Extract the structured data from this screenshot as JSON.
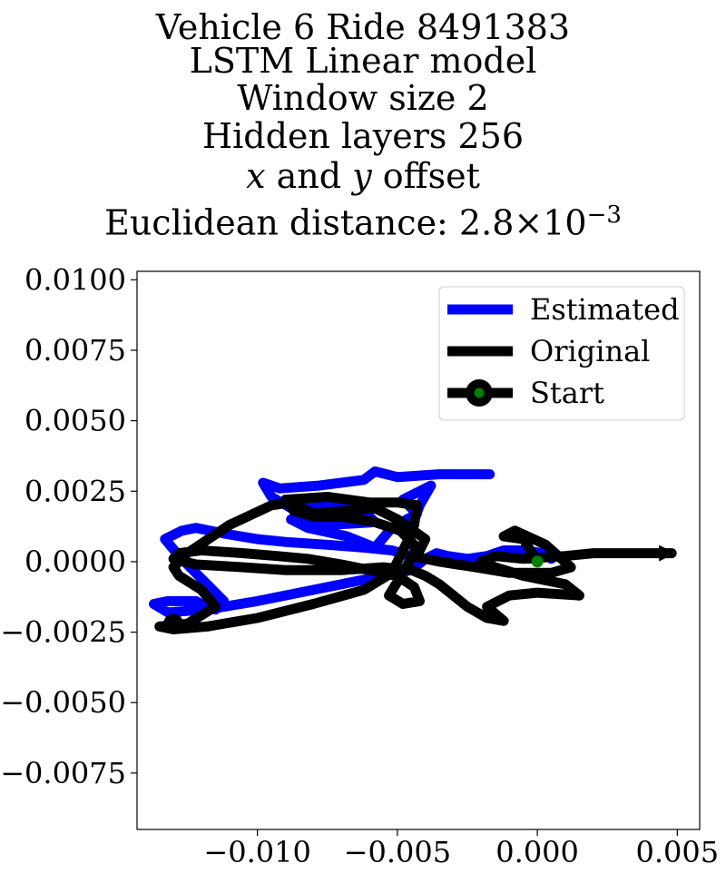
{
  "title_lines": {
    "line1": "Vehicle 6 Ride 8491383",
    "line2": "LSTM Linear model",
    "line3": "Window size 2",
    "line4": "Hidden layers 256",
    "line5_x": "x",
    "line5_and": " and ",
    "line5_y": "y",
    "line5_rest": " offset",
    "line6_prefix": "Euclidean distance: 2.8",
    "line6_times": "×",
    "line6_base": "10",
    "line6_exp": "−3"
  },
  "chart_data": {
    "type": "line",
    "xlim": [
      -0.0143,
      0.0058
    ],
    "ylim": [
      -0.0095,
      0.0103
    ],
    "x_ticks": [
      -0.01,
      -0.005,
      0.0,
      0.005
    ],
    "x_tick_labels": [
      "−0.010",
      "−0.005",
      "0.000",
      "0.005"
    ],
    "y_ticks": [
      0.01,
      0.0075,
      0.005,
      0.0025,
      0.0,
      -0.0025,
      -0.005,
      -0.0075
    ],
    "y_tick_labels": [
      "0.0100",
      "0.0075",
      "0.0050",
      "0.0025",
      "0.0000",
      "−0.0025",
      "−0.0050",
      "−0.0075"
    ],
    "grid": false,
    "legend": {
      "placement": "top-right",
      "entries": [
        {
          "label": "Estimated",
          "color": "#0000ff"
        },
        {
          "label": "Original",
          "color": "#000000"
        },
        {
          "label": "Start",
          "color": "#000000",
          "marker_color": "#008000"
        }
      ]
    },
    "series": [
      {
        "name": "Estimated",
        "color": "#0000ff",
        "x": [
          -0.0017,
          -0.0035,
          -0.005,
          -0.0058,
          -0.0062,
          -0.0078,
          -0.0092,
          -0.0098,
          -0.0095,
          -0.0088,
          -0.0077,
          -0.0063,
          -0.0058,
          -0.0075,
          -0.0088,
          -0.0082,
          -0.0068,
          -0.0058,
          -0.0052,
          -0.0043,
          -0.0048,
          -0.0038,
          -0.0042,
          -0.0046,
          -0.0042,
          -0.0052,
          -0.0062,
          -0.0075,
          -0.009,
          -0.01,
          -0.0112,
          -0.0122,
          -0.0127,
          -0.0133,
          -0.0128,
          -0.0118,
          -0.0112,
          -0.0115,
          -0.0118,
          -0.0122,
          -0.0132,
          -0.0137,
          -0.0132,
          -0.0118,
          -0.01,
          -0.008,
          -0.006,
          -0.0045,
          -0.004,
          -0.0036,
          -0.0032,
          -0.0025,
          -0.0018,
          -0.0012,
          -0.0005,
          0.0002,
          0.0005
        ],
        "y": [
          0.0031,
          0.0031,
          0.003,
          0.0032,
          0.0029,
          0.0027,
          0.0026,
          0.0028,
          0.0023,
          0.0019,
          0.002,
          0.0019,
          0.0014,
          0.0013,
          0.0015,
          0.0012,
          0.0009,
          0.0005,
          0.0012,
          0.0017,
          0.0022,
          0.0027,
          0.002,
          0.0009,
          0.0001,
          0.0004,
          0.0005,
          0.0006,
          0.0007,
          0.0008,
          0.001,
          0.0012,
          0.0011,
          0.0008,
          0.0002,
          -0.0008,
          -0.0014,
          -0.0017,
          -0.0016,
          -0.0014,
          -0.0014,
          -0.0015,
          -0.0018,
          -0.0017,
          -0.0014,
          -0.001,
          -0.0006,
          -0.0003,
          0.0001,
          0.0003,
          0.0002,
          0.0001,
          0.0002,
          0.0004,
          0.0004,
          0.0003,
          0.0001
        ]
      },
      {
        "name": "Original",
        "color": "#000000",
        "x": [
          0.0,
          -0.0005,
          -0.0012,
          -0.0008,
          0.0003,
          0.0012,
          0.0005,
          -0.001,
          -0.0022,
          -0.0035,
          -0.0045,
          -0.0042,
          -0.004,
          -0.005,
          -0.0058,
          -0.0068,
          -0.008,
          -0.0088,
          -0.0095,
          -0.011,
          -0.0125,
          -0.013,
          -0.0128,
          -0.012,
          -0.0115,
          -0.0125,
          -0.0135,
          -0.013,
          -0.0118,
          -0.01,
          -0.008,
          -0.0062,
          -0.0052,
          -0.005,
          -0.0048,
          -0.0046,
          -0.0044,
          -0.0043,
          -0.005,
          -0.006,
          -0.0075,
          -0.009,
          -0.0087,
          -0.008,
          -0.007,
          -0.0058,
          -0.0049,
          -0.0043,
          -0.0048,
          -0.0053,
          -0.0048,
          -0.0042,
          -0.0044,
          -0.005,
          -0.006,
          -0.007,
          -0.0082,
          -0.0093,
          -0.0105,
          -0.012,
          -0.0128,
          -0.013,
          -0.0122,
          -0.0105,
          -0.009,
          -0.007,
          -0.0055,
          -0.0045,
          -0.004,
          -0.0035,
          -0.003,
          -0.0025,
          -0.0018,
          -0.0012,
          -0.0018,
          -0.001,
          0.0,
          0.0015,
          0.001,
          -0.0005,
          -0.0015,
          -0.002,
          -0.0015,
          -0.0005,
          0.001,
          0.002,
          0.0035,
          0.0048
        ],
        "y": [
          0.0,
          0.0008,
          0.0009,
          0.0011,
          0.0006,
          -0.0002,
          -0.0004,
          -0.0004,
          -0.0002,
          0.0,
          0.0002,
          0.0004,
          0.0008,
          0.0015,
          0.0019,
          0.0018,
          0.0017,
          0.0021,
          0.002,
          0.0013,
          0.0003,
          -0.0002,
          -0.0005,
          -0.001,
          -0.0016,
          -0.0022,
          -0.0023,
          -0.0024,
          -0.0023,
          -0.002,
          -0.0015,
          -0.001,
          -0.0004,
          0.0,
          0.0004,
          0.0008,
          0.0013,
          0.002,
          0.0021,
          0.0021,
          0.0023,
          0.0022,
          0.0018,
          0.0016,
          0.0016,
          0.0014,
          0.0011,
          0.0005,
          -0.0004,
          -0.0012,
          -0.0015,
          -0.0014,
          -0.0009,
          -0.0005,
          -0.0003,
          -0.0001,
          0.0001,
          0.0002,
          0.0003,
          0.0004,
          0.0003,
          0.0001,
          -0.0001,
          -0.0002,
          -0.0003,
          -0.0003,
          -0.0002,
          -0.0003,
          -0.0005,
          -0.0008,
          -0.0012,
          -0.0016,
          -0.002,
          -0.0021,
          -0.0016,
          -0.0012,
          -0.0011,
          -0.0012,
          -0.0008,
          -0.0005,
          -0.0002,
          0.0,
          0.0002,
          0.0001,
          0.0002,
          0.0003,
          0.0003,
          0.0003
        ]
      }
    ],
    "start_point": {
      "name": "Start",
      "x": 0.0,
      "y": 0.0,
      "color": "#008000"
    }
  }
}
